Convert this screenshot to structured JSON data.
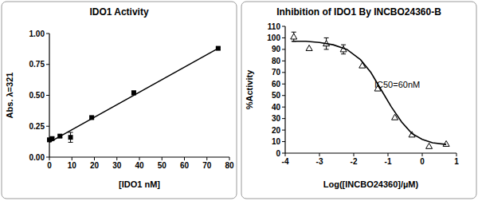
{
  "chart_data": [
    {
      "type": "scatter",
      "title": "IDO1 Activity",
      "x_label": "[IDO1 nM]",
      "y_label": "Abs. λ=321",
      "xlim": [
        0,
        80
      ],
      "ylim": [
        0,
        1
      ],
      "xticks": [
        0,
        10,
        20,
        30,
        40,
        50,
        60,
        70,
        80
      ],
      "yticks": [
        {
          "value": 0,
          "label": "0.00"
        },
        {
          "value": 0.25,
          "label": "0.25"
        },
        {
          "value": 0.5,
          "label": "0.50"
        },
        {
          "value": 0.75,
          "label": "0.75"
        },
        {
          "value": 1,
          "label": "1.00"
        }
      ],
      "series": [
        {
          "type": "scatter",
          "color": "#000000",
          "marker": "square",
          "x": [
            0,
            1.2,
            4.7,
            9.4,
            18.8,
            37.5,
            75
          ],
          "values": [
            0.14,
            0.15,
            0.17,
            0.16,
            0.32,
            0.52,
            0.88
          ],
          "errors": [
            0.01,
            0.01,
            0.01,
            0.04,
            0.01,
            0.015,
            0.01
          ]
        },
        {
          "type": "line",
          "color": "#000000",
          "line_style": "solid",
          "x": [
            0,
            75
          ],
          "values": [
            0.12,
            0.88
          ]
        }
      ]
    },
    {
      "type": "scatter",
      "title": "Inhibition of IDO1 By INCBO24360-B",
      "x_label": "Log([INCBO24360]/µM)",
      "y_label": "%Activity",
      "annotations": [
        "IC50=60nM"
      ],
      "xlim": [
        -4,
        1
      ],
      "ylim": [
        0,
        110
      ],
      "xticks": [
        -4,
        -3,
        -2,
        -1,
        0,
        1
      ],
      "yticks": [
        0,
        10,
        20,
        30,
        40,
        50,
        60,
        70,
        80,
        90,
        100,
        110
      ],
      "series": [
        {
          "type": "scatter",
          "color": "#000000",
          "marker": "triangle",
          "x": [
            -3.75,
            -3.3,
            -2.8,
            -2.3,
            -1.75,
            -1.3,
            -0.8,
            -0.3,
            0.2,
            0.7
          ],
          "values": [
            101,
            91,
            95,
            90,
            76,
            56,
            31,
            16,
            6,
            8
          ],
          "errors": [
            4,
            0,
            5,
            4,
            0,
            0,
            0,
            0,
            0,
            0
          ]
        },
        {
          "type": "line",
          "color": "#000000",
          "line_style": "solid",
          "x": [
            -3.8,
            -3.4,
            -3.0,
            -2.6,
            -2.2,
            -1.8,
            -1.5,
            -1.2,
            -0.9,
            -0.6,
            -0.3,
            0.0,
            0.3,
            0.7
          ],
          "values": [
            97,
            97,
            96,
            94,
            90,
            81,
            70,
            55,
            40,
            27,
            17,
            12,
            9,
            7.5
          ]
        }
      ]
    }
  ]
}
